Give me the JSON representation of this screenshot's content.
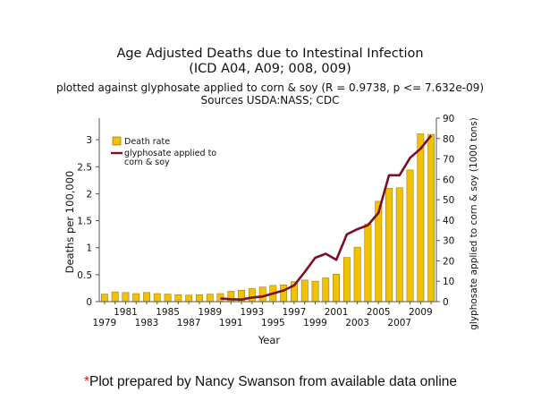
{
  "chart_data": {
    "type": "bar",
    "title": "Age Adjusted Deaths due to Intestinal Infection",
    "title_line2": "(ICD A04, A09; 008, 009)",
    "subtitle": "plotted against glyphosate applied to corn & soy (R = 0.9738, p <= 7.632e-09)",
    "subtitle_line2": "Sources USDA:NASS; CDC",
    "xlabel": "Year",
    "ylabel": "Deaths per 100,000",
    "y2label": "glyphosate applied to corn & soy (1000 tons)",
    "ylim": [
      0,
      3.4
    ],
    "y2lim": [
      0,
      90
    ],
    "yticks": [
      "0",
      "0.5",
      "1",
      "1.5",
      "2",
      "2.5",
      "3"
    ],
    "y2ticks": [
      "0",
      "10",
      "20",
      "30",
      "40",
      "50",
      "60",
      "70",
      "80",
      "90"
    ],
    "x_odd_labels": [
      "1981",
      "1985",
      "1989",
      "1993",
      "1997",
      "2001",
      "2005",
      "2009"
    ],
    "x_odd_labels_b": [
      "1979",
      "1983",
      "1987",
      "1991",
      "1995",
      "1999",
      "2003",
      "2007"
    ],
    "grid": false,
    "legend_position": "top-left",
    "years": [
      1979,
      1980,
      1981,
      1982,
      1983,
      1984,
      1985,
      1986,
      1987,
      1988,
      1989,
      1990,
      1991,
      1992,
      1993,
      1994,
      1995,
      1996,
      1997,
      1998,
      1999,
      2000,
      2001,
      2002,
      2003,
      2004,
      2005,
      2006,
      2007,
      2008,
      2009,
      2010
    ],
    "series": [
      {
        "name": "Death rate",
        "type": "bar",
        "axis": "left",
        "color": "#f2c200",
        "values": [
          0.14,
          0.18,
          0.17,
          0.15,
          0.17,
          0.15,
          0.14,
          0.13,
          0.12,
          0.13,
          0.14,
          0.15,
          0.19,
          0.21,
          0.24,
          0.27,
          0.3,
          0.31,
          0.37,
          0.4,
          0.38,
          0.44,
          0.51,
          0.82,
          1.01,
          1.44,
          1.86,
          2.1,
          2.11,
          2.44,
          3.11,
          3.1
        ]
      },
      {
        "name": "glyphosate applied to corn & soy",
        "type": "line",
        "axis": "right",
        "color": "#7a1028",
        "years": [
          1990,
          1991,
          1992,
          1993,
          1994,
          1995,
          1996,
          1997,
          1998,
          1999,
          2000,
          2001,
          2002,
          2003,
          2004,
          2005,
          2006,
          2007,
          2008,
          2009,
          2010
        ],
        "values": [
          1.5,
          1.2,
          1.0,
          2.0,
          2.5,
          4.0,
          5.5,
          8.0,
          14.5,
          21.5,
          23.5,
          20.5,
          33.0,
          35.5,
          37.5,
          43.5,
          62.0,
          62.0,
          70.5,
          75.0,
          81.5
        ]
      }
    ]
  },
  "footnote": {
    "star": "*",
    "text": "Plot prepared by Nancy Swanson from available data online"
  }
}
